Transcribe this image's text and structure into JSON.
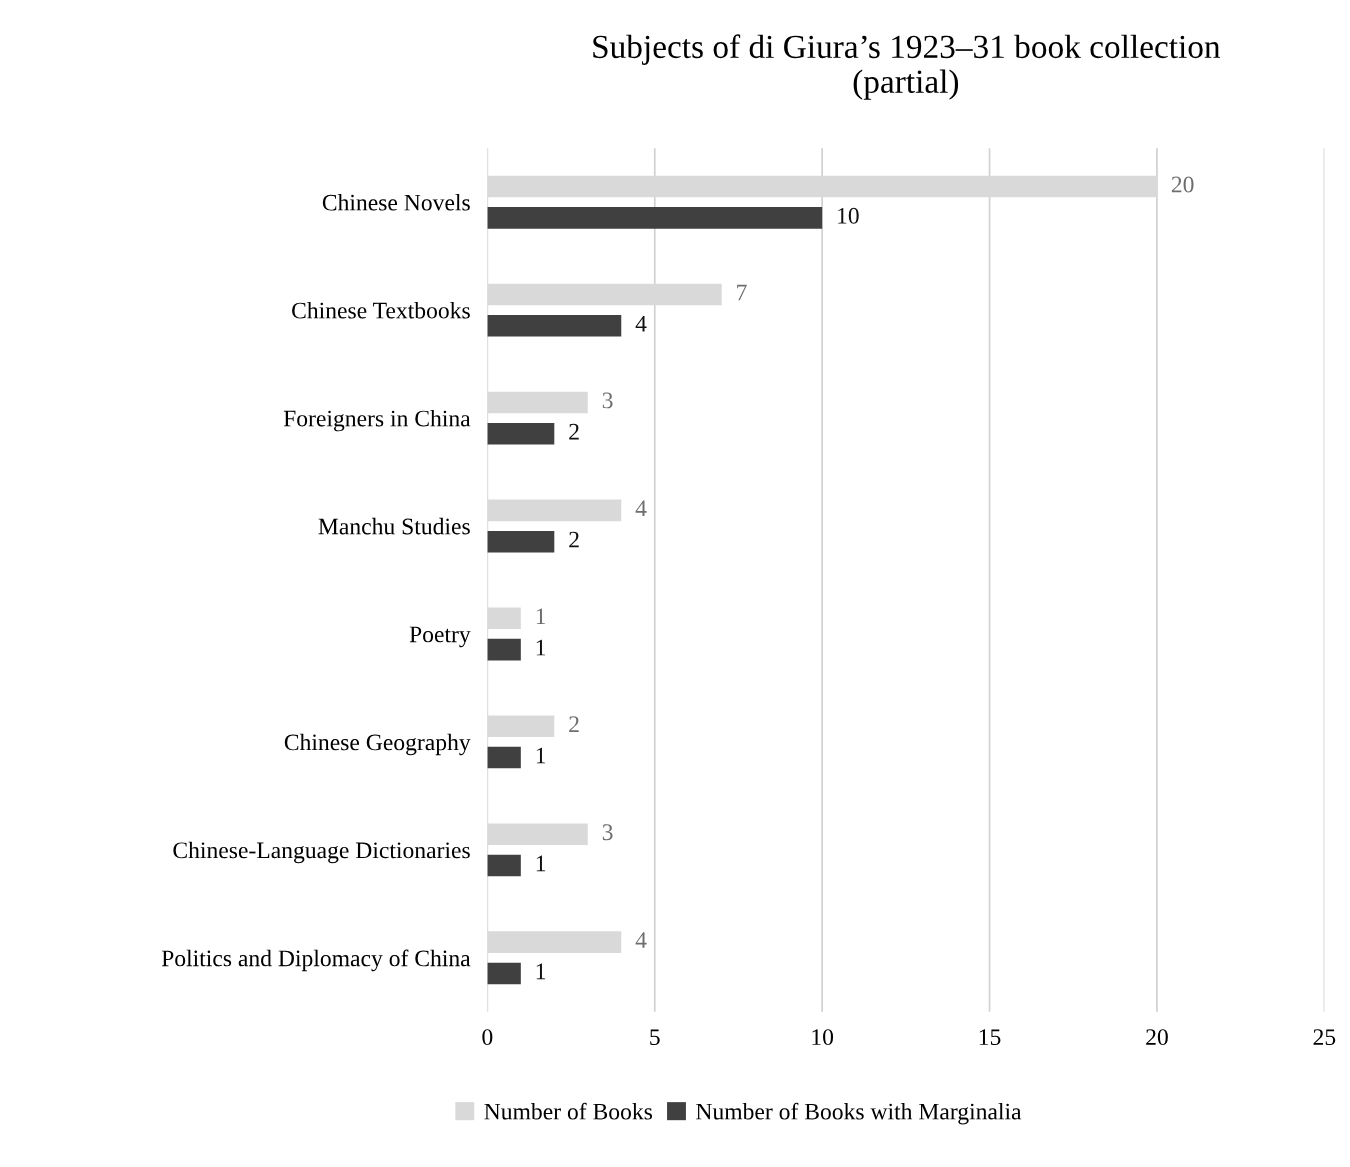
{
  "chart_data": {
    "type": "bar",
    "orientation": "horizontal",
    "title": "Subjects of di Giura’s 1923–31 book collection\n(partial)",
    "categories": [
      "Chinese Novels",
      "Chinese Textbooks",
      "Foreigners in China",
      "Manchu Studies",
      "Poetry",
      "Chinese Geography",
      "Chinese-Language Dictionaries",
      "Politics and Diplomacy of China"
    ],
    "series": [
      {
        "name": "Number of Books",
        "color": "#d9d9d9",
        "values": [
          20,
          7,
          3,
          4,
          1,
          2,
          3,
          4
        ]
      },
      {
        "name": "Number of Books with Marginalia",
        "color": "#404040",
        "values": [
          10,
          4,
          2,
          2,
          1,
          1,
          1,
          1
        ]
      }
    ],
    "xlim": [
      0,
      25
    ],
    "xticks": [
      0,
      5,
      10,
      15,
      20,
      25
    ],
    "grid": "x",
    "legend": "bottom",
    "data_labels": true
  }
}
